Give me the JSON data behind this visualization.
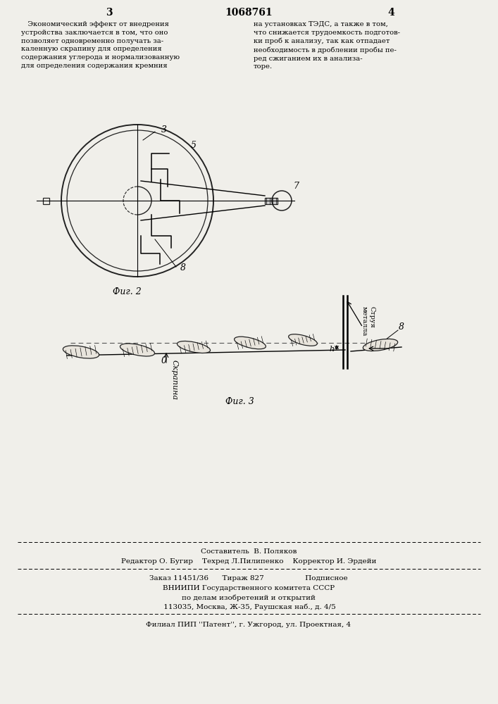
{
  "bg_color": "#f0efea",
  "page_num_left": "3",
  "page_num_center": "1068761",
  "page_num_right": "4",
  "text_left": "   Экономический эффект от внедрения\nустройства заключается в том, что оно\nпозволяет одновременно получать за-\nкаленную скрапину для определения\nсодержания углерода и нормализованную\nдля определения содержания кремния",
  "text_right": "на установках ТЭДС, а также в том,\nчто снижается трудоемкость подготов-\nки проб к анализу, так как отпадает\nнеобходимость в дроблении пробы пе-\nред сжиганием их в анализа-\nторе.",
  "fig2_label": "Фиг. 2",
  "fig3_label": "Фиг. 3",
  "footer_line1": "Составитель  В. Поляков",
  "footer_line2": "Редактор О. Бугир    Техред Л.Пилипенко    Корректор И. Эрдейи",
  "footer_line3": "Заказ 11451/36      Тираж 827                  Подписное",
  "footer_line4": "ВНИИПИ Государственного комитета СССР",
  "footer_line5": "по делам изобретений и открытий",
  "footer_line6": " 113035, Москва, Ж-35, Раушская наб., д. 4/5",
  "footer_line7": "Филиал ПИП ''Патент'', г. Ужгород, ул. Проектная, 4"
}
